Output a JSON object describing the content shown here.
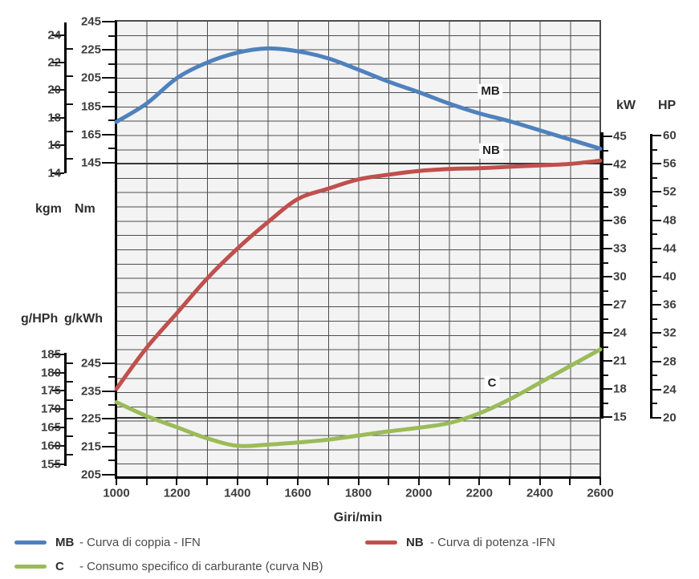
{
  "chart_data": {
    "type": "line",
    "title": "",
    "xlabel": "Giri/min",
    "x_unit": "Giri/min",
    "x_range": [
      1000,
      2600
    ],
    "x_rpm": [
      1000,
      1100,
      1200,
      1300,
      1400,
      1500,
      1600,
      1700,
      1800,
      1900,
      2000,
      2100,
      2200,
      2300,
      2400,
      2500,
      2600
    ],
    "x_ticks_labeled": [
      1000,
      1200,
      1400,
      1600,
      1800,
      2000,
      2200,
      2400,
      2600
    ],
    "grid": true,
    "series": [
      {
        "id": "MB",
        "name": "Curva di coppia - IFN",
        "unit": "Nm",
        "color": "#4f81bd",
        "values": [
          174,
          187,
          205,
          216,
          223,
          226,
          224,
          219,
          211,
          202.5,
          195,
          187,
          180,
          174.5,
          168,
          161.5,
          155
        ]
      },
      {
        "id": "NB",
        "name": "Curva di potenza -IFN",
        "unit": "kW",
        "color": "#c0504d",
        "values": [
          18,
          22.4,
          26.1,
          29.8,
          33,
          35.8,
          38.3,
          39.4,
          40.4,
          40.9,
          41.3,
          41.5,
          41.6,
          41.75,
          41.9,
          42.05,
          42.4
        ]
      },
      {
        "id": "C",
        "name": "Consumo specifico di carburante (curva NB)",
        "unit": "g/kWh",
        "color": "#9bbb59",
        "values": [
          231,
          226,
          222,
          218,
          215.3,
          215.7,
          216.5,
          217.5,
          219,
          220.5,
          221.8,
          223.5,
          227,
          232,
          238,
          244,
          250
        ]
      }
    ],
    "axes": {
      "kgm": {
        "label": "kgm",
        "ticks": [
          24,
          22,
          20,
          18,
          16,
          14
        ]
      },
      "Nm": {
        "label": "Nm",
        "ticks": [
          245,
          225,
          205,
          185,
          165,
          145
        ]
      },
      "gHPh": {
        "label": "g/HPh",
        "ticks": [
          185,
          180,
          175,
          170,
          165,
          160,
          155
        ]
      },
      "gkWh": {
        "label": "g/kWh",
        "ticks": [
          245,
          235,
          225,
          215,
          205
        ]
      },
      "kW": {
        "label": "kW",
        "ticks": [
          45,
          42,
          39,
          36,
          33,
          30,
          27,
          24,
          21,
          18,
          15
        ]
      },
      "HP": {
        "label": "HP",
        "ticks": [
          60,
          56,
          52,
          48,
          44,
          40,
          36,
          32,
          28,
          24,
          20
        ]
      }
    }
  },
  "units": {
    "kgm": "kgm",
    "nm": "Nm",
    "ghph": "g/HPh",
    "gkwh": "g/kWh",
    "kw": "kW",
    "hp": "HP"
  },
  "curve_labels": {
    "mb": "MB",
    "nb": "NB",
    "c": "C"
  },
  "colors": {
    "mb": "#4f81bd",
    "nb": "#c0504d",
    "c": "#9bbb59",
    "grid": "#4d4d4d",
    "plot_bg": "#f3f3f3"
  },
  "legend": [
    {
      "abbr": "MB",
      "text": "- Curva di coppia - IFN"
    },
    {
      "abbr": "NB",
      "text": "- Curva di potenza  -IFN"
    },
    {
      "abbr": "C",
      "text": "- Consumo specifico di carburante (curva NB)"
    }
  ]
}
